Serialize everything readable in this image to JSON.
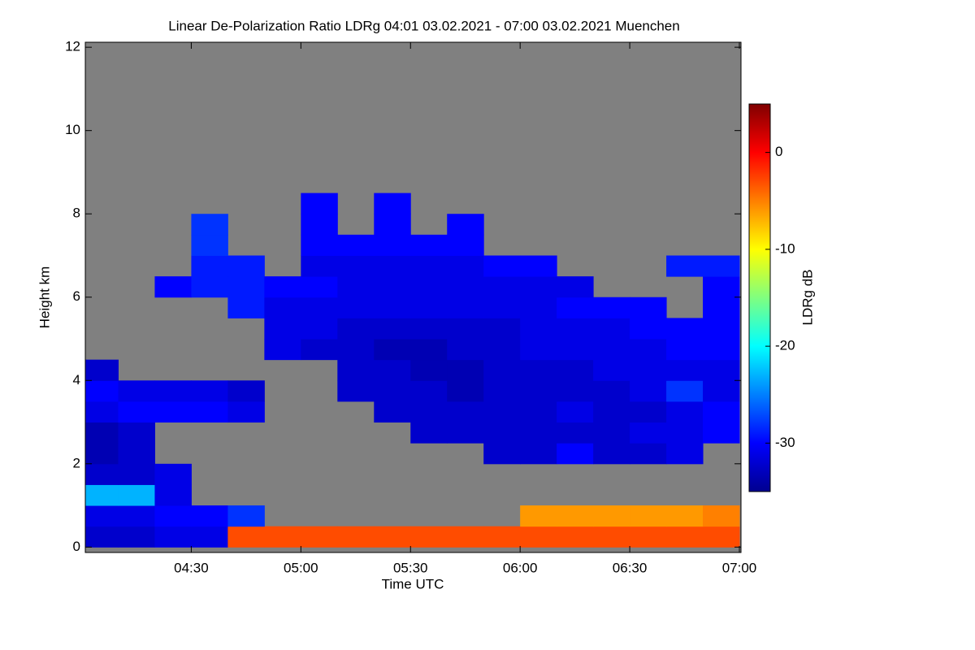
{
  "chart_data": {
    "type": "heatmap",
    "title": "Linear De-Polarization Ratio LDRg   04:01 03.02.2021 - 07:00 03.02.2021 Muenchen",
    "x_label": "Time UTC",
    "y_label": "Height km",
    "xlim": [
      "04:01",
      "07:00"
    ],
    "xticks": [
      "04:30",
      "05:00",
      "05:30",
      "06:00",
      "06:30",
      "07:00"
    ],
    "ylim": [
      -0.13,
      12.12
    ],
    "yticks": [
      0,
      2,
      4,
      6,
      8,
      10,
      12
    ],
    "background": "#808080",
    "colormap": "jet",
    "x_bins": [
      "04:01",
      "04:10",
      "04:20",
      "04:30",
      "04:40",
      "04:50",
      "05:00",
      "05:10",
      "05:20",
      "05:30",
      "05:40",
      "05:50",
      "06:00",
      "06:10",
      "06:20",
      "06:30",
      "06:40",
      "06:50",
      "07:00"
    ],
    "y_bins": [
      0,
      0.5,
      1,
      1.5,
      2,
      2.5,
      3,
      3.5,
      4,
      4.5,
      5,
      5.5,
      6,
      6.5,
      7,
      7.5,
      8,
      8.5
    ],
    "values": [
      [
        -32,
        -32,
        -31,
        -31,
        -3,
        -3,
        -3,
        -3,
        -3,
        -3,
        -3,
        -3,
        -3,
        -3,
        -3,
        -3,
        -3,
        -3
      ],
      [
        -31,
        -31,
        -30,
        -30,
        -28,
        null,
        null,
        null,
        null,
        null,
        null,
        null,
        -6,
        -6,
        -6,
        -6,
        -6,
        -5
      ],
      [
        -23,
        -23,
        -31,
        null,
        null,
        null,
        null,
        null,
        null,
        null,
        null,
        null,
        null,
        null,
        null,
        null,
        null,
        null
      ],
      [
        -32,
        -32,
        -31,
        null,
        null,
        null,
        null,
        null,
        null,
        null,
        null,
        null,
        null,
        null,
        null,
        null,
        null,
        null
      ],
      [
        -33,
        -32,
        null,
        null,
        null,
        null,
        null,
        null,
        null,
        null,
        null,
        -32,
        -32,
        -30,
        -32,
        -32,
        -31,
        null
      ],
      [
        -33,
        -32,
        null,
        null,
        null,
        null,
        null,
        null,
        null,
        -32,
        -32,
        -32,
        -32,
        -32,
        -32,
        -31,
        -31,
        -30
      ],
      [
        -31,
        -30,
        -30,
        -30,
        -31,
        null,
        null,
        null,
        -32,
        -32,
        -32,
        -32,
        -32,
        -31,
        -32,
        -32,
        -31,
        -30
      ],
      [
        -30,
        -31,
        -31,
        -31,
        -32,
        null,
        null,
        -32,
        -32,
        -32,
        -33,
        -32,
        -32,
        -32,
        -32,
        -31,
        -28,
        -31
      ],
      [
        -32,
        null,
        null,
        null,
        null,
        null,
        null,
        -32,
        -32,
        -33,
        -33,
        -32,
        -32,
        -32,
        -31,
        -31,
        -31,
        -31
      ],
      [
        null,
        null,
        null,
        null,
        null,
        -31,
        -32,
        -32,
        -33,
        -33,
        -32,
        -32,
        -31,
        -31,
        -31,
        -31,
        -30,
        -30
      ],
      [
        null,
        null,
        null,
        null,
        null,
        -31,
        -31,
        -32,
        -32,
        -32,
        -32,
        -32,
        -31,
        -31,
        -31,
        -30,
        -30,
        -30
      ],
      [
        null,
        null,
        null,
        null,
        -29,
        -31,
        -31,
        -31,
        -31,
        -31,
        -31,
        -31,
        -31,
        -30,
        -30,
        -30,
        null,
        -30
      ],
      [
        null,
        null,
        -30,
        -29,
        -29,
        -30,
        -30,
        -31,
        -31,
        -31,
        -31,
        -31,
        -31,
        -31,
        null,
        null,
        null,
        -30
      ],
      [
        null,
        null,
        null,
        -29,
        -29,
        null,
        -31,
        -31,
        -31,
        -31,
        -31,
        -30,
        -30,
        null,
        null,
        null,
        -29,
        -29
      ],
      [
        null,
        null,
        null,
        -28,
        null,
        null,
        -30,
        -30,
        -30,
        -30,
        -30,
        null,
        null,
        null,
        null,
        null,
        null,
        null
      ],
      [
        null,
        null,
        null,
        -28,
        null,
        null,
        -30,
        null,
        -30,
        null,
        -30,
        null,
        null,
        null,
        null,
        null,
        null,
        null
      ],
      [
        null,
        null,
        null,
        null,
        null,
        null,
        -30,
        null,
        -30,
        null,
        null,
        null,
        null,
        null,
        null,
        null,
        null,
        null
      ]
    ],
    "colorbar": {
      "label": "LDRg dB",
      "lim": [
        -35,
        5
      ],
      "ticks": [
        -30,
        -20,
        -10,
        0
      ]
    }
  }
}
